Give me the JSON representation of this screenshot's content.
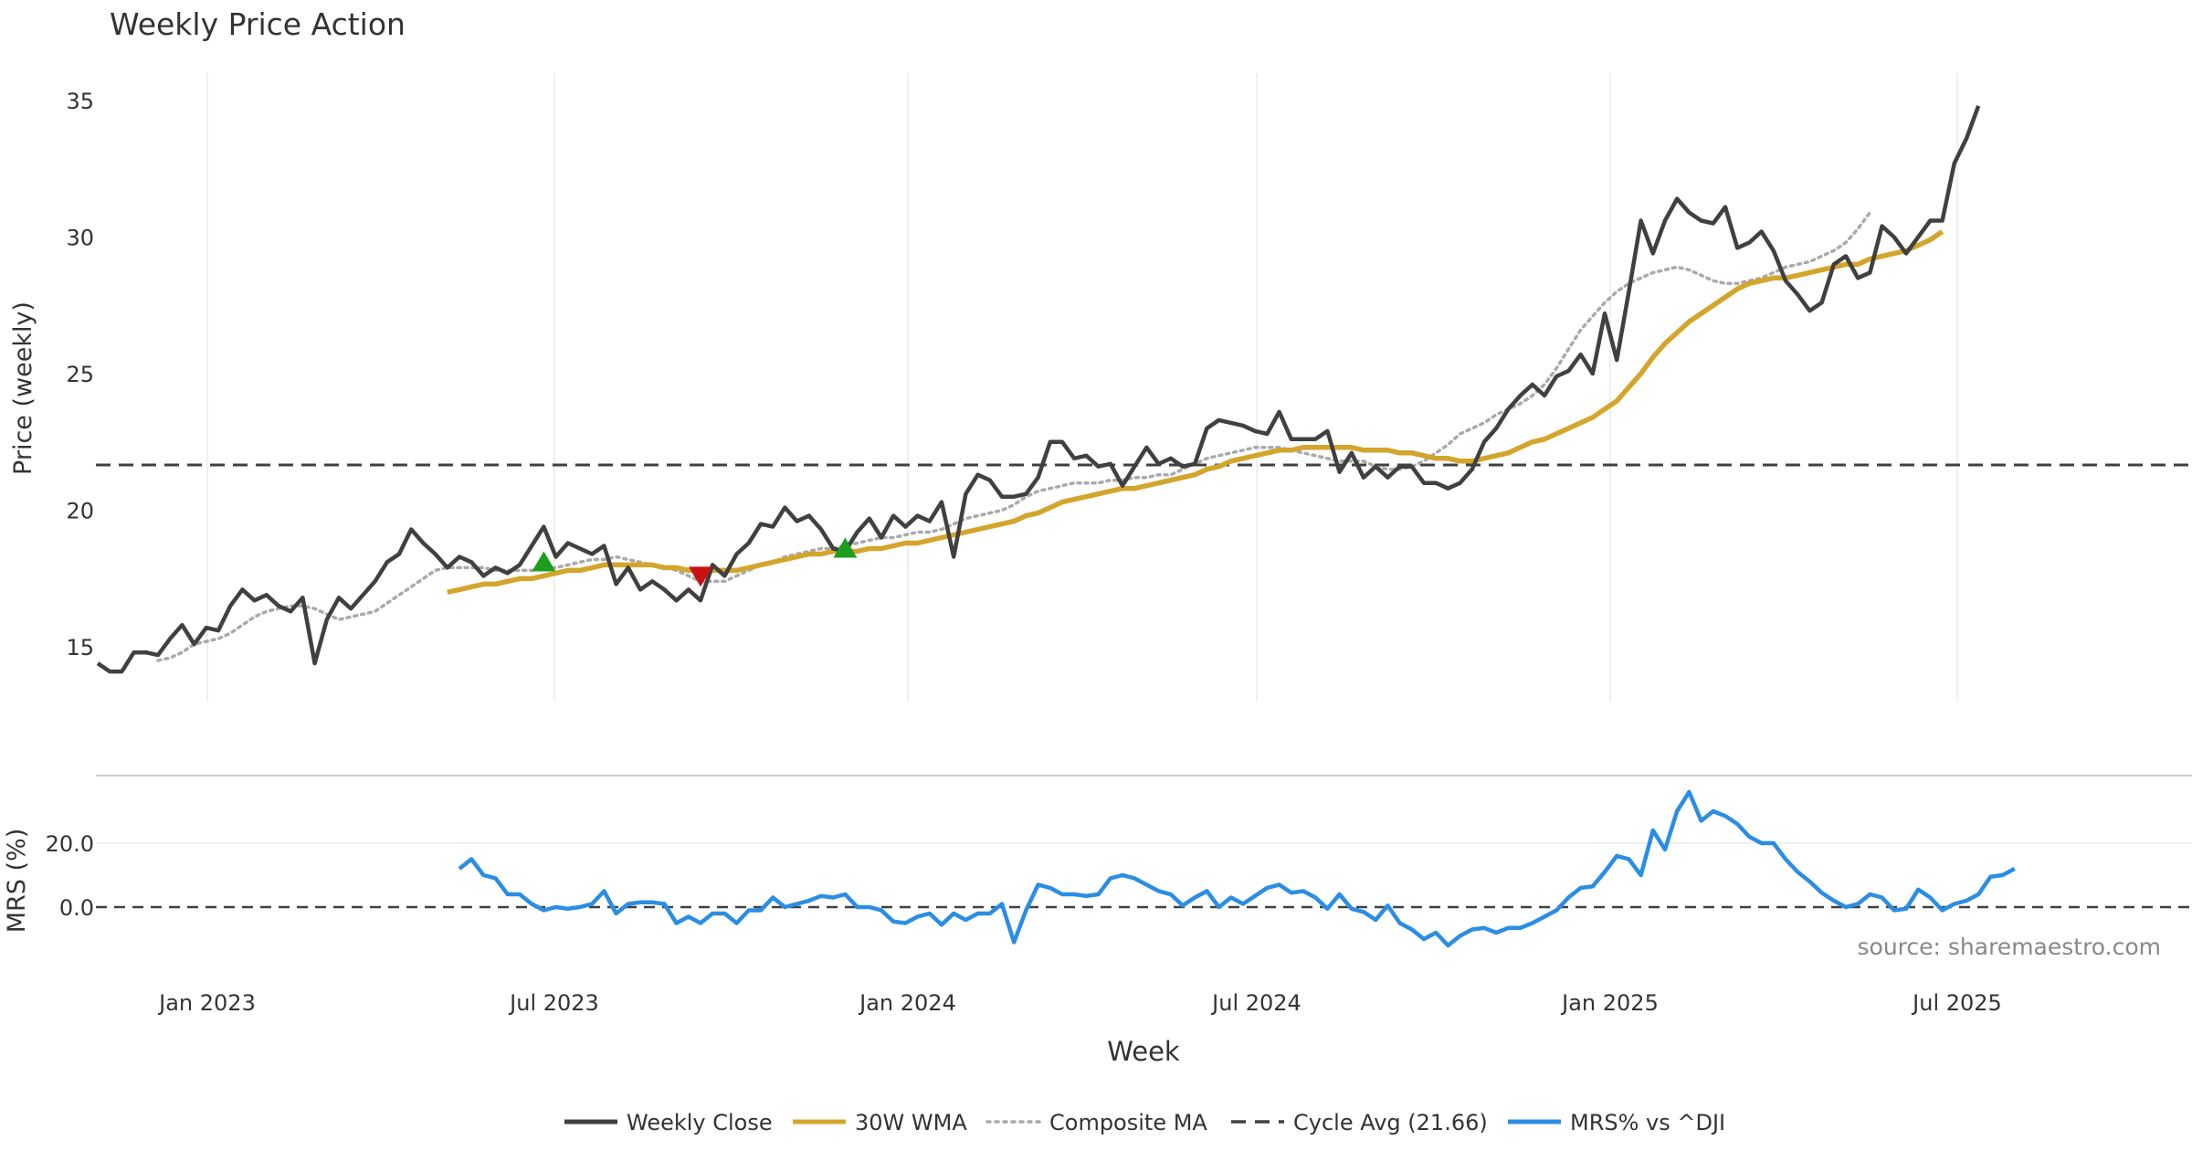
{
  "chart_data": {
    "type": "line",
    "title": "Weekly Price Action",
    "xlabel": "Week",
    "source": "source: sharemaestro.com",
    "x_ticks": [
      "Jan 2023",
      "Jul 2023",
      "Jan 2024",
      "Jul 2024",
      "Jan 2025",
      "Jul 2025"
    ],
    "price_panel": {
      "ylabel": "Price (weekly)",
      "ylim": [
        13.0,
        36.0
      ],
      "yticks": [
        15,
        20,
        25,
        30,
        35
      ],
      "cycle_avg": 21.66,
      "series": {
        "weekly_close": {
          "name": "Weekly Close",
          "color": "#404040",
          "start_index": 0,
          "values": [
            14.4,
            14.1,
            14.1,
            14.8,
            14.8,
            14.7,
            15.3,
            15.8,
            15.1,
            15.7,
            15.6,
            16.5,
            17.1,
            16.7,
            16.9,
            16.5,
            16.3,
            16.8,
            14.4,
            16.0,
            16.8,
            16.4,
            16.9,
            17.4,
            18.1,
            18.4,
            19.3,
            18.8,
            18.4,
            17.9,
            18.3,
            18.1,
            17.6,
            17.9,
            17.7,
            18.0,
            18.7,
            19.4,
            18.3,
            18.8,
            18.6,
            18.4,
            18.7,
            17.3,
            17.9,
            17.1,
            17.4,
            17.1,
            16.7,
            17.1,
            16.7,
            18.0,
            17.6,
            18.4,
            18.8,
            19.5,
            19.4,
            20.1,
            19.6,
            19.8,
            19.3,
            18.6,
            18.5,
            19.2,
            19.7,
            19.0,
            19.8,
            19.4,
            19.8,
            19.6,
            20.3,
            18.3,
            20.6,
            21.3,
            21.1,
            20.5,
            20.5,
            20.6,
            21.2,
            22.5,
            22.5,
            21.9,
            22.0,
            21.6,
            21.7,
            20.9,
            21.6,
            22.3,
            21.7,
            21.9,
            21.6,
            21.7,
            23.0,
            23.3,
            23.2,
            23.1,
            22.9,
            22.8,
            23.6,
            22.6,
            22.6,
            22.6,
            22.9,
            21.4,
            22.1,
            21.2,
            21.6,
            21.2,
            21.6,
            21.6,
            21.0,
            21.0,
            20.8,
            21.0,
            21.5,
            22.5,
            23.0,
            23.7,
            24.2,
            24.6,
            24.2,
            24.9,
            25.1,
            25.7,
            25.0,
            27.2,
            25.5,
            28.0,
            30.6,
            29.4,
            30.6,
            31.4,
            30.9,
            30.6,
            30.5,
            31.1,
            29.6,
            29.8,
            30.2,
            29.5,
            28.4,
            27.9,
            27.3,
            27.6,
            29.0,
            29.3,
            28.5,
            28.7,
            30.4,
            30.0,
            29.4,
            30.0,
            30.6,
            30.6,
            32.7,
            33.6,
            34.8
          ]
        },
        "wma_30": {
          "name": "30W WMA",
          "color": "#d4a52c",
          "start_index": 29,
          "values": [
            17.0,
            17.1,
            17.2,
            17.3,
            17.3,
            17.4,
            17.5,
            17.5,
            17.6,
            17.7,
            17.8,
            17.8,
            17.9,
            18.0,
            18.0,
            18.0,
            18.0,
            18.0,
            17.9,
            17.9,
            17.8,
            17.8,
            17.8,
            17.8,
            17.8,
            17.9,
            18.0,
            18.1,
            18.2,
            18.3,
            18.4,
            18.4,
            18.5,
            18.5,
            18.5,
            18.6,
            18.6,
            18.7,
            18.8,
            18.8,
            18.9,
            19.0,
            19.1,
            19.2,
            19.3,
            19.4,
            19.5,
            19.6,
            19.8,
            19.9,
            20.1,
            20.3,
            20.4,
            20.5,
            20.6,
            20.7,
            20.8,
            20.8,
            20.9,
            21.0,
            21.1,
            21.2,
            21.3,
            21.5,
            21.6,
            21.8,
            21.9,
            22.0,
            22.1,
            22.2,
            22.2,
            22.3,
            22.3,
            22.3,
            22.3,
            22.3,
            22.2,
            22.2,
            22.2,
            22.1,
            22.1,
            22.0,
            21.9,
            21.9,
            21.8,
            21.8,
            21.9,
            22.0,
            22.1,
            22.3,
            22.5,
            22.6,
            22.8,
            23.0,
            23.2,
            23.4,
            23.7,
            24.0,
            24.5,
            25.0,
            25.6,
            26.1,
            26.5,
            26.9,
            27.2,
            27.5,
            27.8,
            28.1,
            28.3,
            28.4,
            28.5,
            28.5,
            28.6,
            28.7,
            28.8,
            28.9,
            29.0,
            29.0,
            29.2,
            29.3,
            29.4,
            29.5,
            29.7,
            29.9,
            30.2
          ]
        },
        "composite_ma": {
          "name": "Composite MA",
          "color": "#aaaaaa",
          "start_index": 5,
          "values": [
            14.5,
            14.6,
            14.8,
            15.1,
            15.2,
            15.3,
            15.5,
            15.8,
            16.1,
            16.3,
            16.4,
            16.5,
            16.5,
            16.4,
            16.2,
            16.0,
            16.1,
            16.2,
            16.3,
            16.6,
            16.9,
            17.2,
            17.5,
            17.8,
            17.9,
            17.9,
            17.9,
            17.9,
            17.8,
            17.8,
            17.8,
            17.8,
            17.9,
            17.9,
            18.0,
            18.1,
            18.2,
            18.2,
            18.3,
            18.2,
            18.1,
            18.0,
            17.9,
            17.8,
            17.6,
            17.4,
            17.4,
            17.4,
            17.6,
            17.8,
            18.0,
            18.1,
            18.3,
            18.4,
            18.5,
            18.6,
            18.6,
            18.7,
            18.8,
            18.9,
            19.0,
            19.0,
            19.1,
            19.2,
            19.2,
            19.3,
            19.5,
            19.7,
            19.8,
            19.9,
            20.0,
            20.2,
            20.5,
            20.7,
            20.8,
            20.9,
            21.0,
            21.0,
            21.0,
            21.1,
            21.1,
            21.2,
            21.2,
            21.3,
            21.3,
            21.5,
            21.7,
            21.9,
            22.0,
            22.1,
            22.2,
            22.3,
            22.3,
            22.3,
            22.2,
            22.1,
            22.0,
            21.9,
            21.8,
            21.8,
            21.8,
            21.6,
            21.5,
            21.5,
            21.6,
            21.8,
            22.1,
            22.4,
            22.8,
            23.0,
            23.2,
            23.5,
            23.7,
            23.9,
            24.2,
            24.6,
            25.2,
            25.9,
            26.6,
            27.1,
            27.6,
            28.0,
            28.3,
            28.5,
            28.7,
            28.8,
            28.9,
            28.8,
            28.6,
            28.4,
            28.3,
            28.3,
            28.4,
            28.5,
            28.7,
            28.9,
            29.0,
            29.1,
            29.3,
            29.5,
            29.8,
            30.3,
            30.9
          ]
        }
      },
      "signals": [
        {
          "type": "buy",
          "index": 37,
          "value": 18.1,
          "color": "#1e9e1e"
        },
        {
          "type": "sell",
          "index": 50,
          "value": 17.6,
          "color": "#cc1111"
        },
        {
          "type": "buy",
          "index": 62,
          "value": 18.6,
          "color": "#1e9e1e"
        }
      ]
    },
    "mrs_panel": {
      "ylabel": "MRS (%)",
      "ylim": [
        -22.0,
        38.0
      ],
      "yticks": [
        0.0,
        20.0
      ],
      "ytick_labels": [
        "0.0",
        "20.0"
      ],
      "zero_line": 0.0,
      "series": {
        "mrs": {
          "name": "MRS% vs ^DJI",
          "color": "#2b8de3",
          "start_index": 30,
          "values": [
            12,
            15,
            10,
            9,
            4,
            4,
            1,
            -1,
            0,
            -0.5,
            0,
            1,
            5,
            -2,
            1,
            1.5,
            1.5,
            1,
            -5,
            -3,
            -5,
            -2,
            -2,
            -5,
            -1,
            -1,
            3,
            0,
            1,
            2,
            3.5,
            3,
            4,
            0,
            0,
            -1,
            -4.5,
            -5,
            -3,
            -2,
            -5.5,
            -2,
            -4,
            -2,
            -2,
            1,
            -11,
            -1,
            7,
            6,
            4,
            4,
            3.5,
            4,
            9,
            10,
            9,
            7,
            5,
            4,
            0.5,
            3,
            5,
            0,
            3,
            1,
            3.5,
            6,
            7,
            4.5,
            5,
            3,
            -0.5,
            4,
            -0.5,
            -1.5,
            -4,
            0.5,
            -5,
            -7,
            -10,
            -8,
            -12,
            -9,
            -7,
            -6.5,
            -8,
            -6.5,
            -6.5,
            -5,
            -3,
            -1,
            3,
            6,
            6.5,
            11,
            16,
            15,
            10,
            24,
            18,
            30,
            36,
            27,
            30,
            28.5,
            26,
            22,
            20,
            20,
            15,
            11,
            8,
            4.5,
            2,
            0,
            1,
            4,
            3,
            -1,
            -0.5,
            5.5,
            3,
            -1,
            1,
            2,
            4,
            9.5,
            10,
            12
          ]
        }
      },
      "source_label": "source: sharemaestro.com"
    },
    "legend": [
      {
        "name": "Weekly Close",
        "style": "solid",
        "color": "#404040"
      },
      {
        "name": "30W WMA",
        "style": "solid",
        "color": "#d4a52c"
      },
      {
        "name": "Composite MA",
        "style": "dotted",
        "color": "#aaaaaa"
      },
      {
        "name": "Cycle Avg (21.66)",
        "style": "dashed",
        "color": "#404040"
      },
      {
        "name": "MRS% vs ^DJI",
        "style": "solid",
        "color": "#2b8de3"
      }
    ]
  }
}
